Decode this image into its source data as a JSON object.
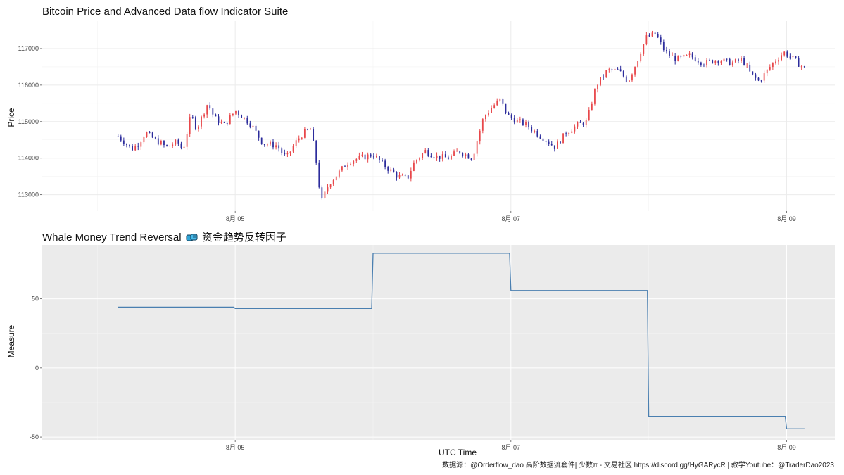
{
  "caption": "数据源：@Orderflow_dao 高阶数据流套件| 少数π - 交易社区 https://discord.gg/HyGARycR | 教学Youtube：@TraderDao2023",
  "colors": {
    "up": "#e8474a",
    "down": "#2c2c9c",
    "line": "#4a7fb0",
    "panel_bg": "#ebebeb"
  },
  "chart_data": [
    {
      "type": "candlestick",
      "title": "Bitcoin Price and Advanced Data flow Indicator Suite",
      "ylabel": "Price",
      "xlabel": "",
      "grid": true,
      "x_range_days": [
        3.6,
        9.35
      ],
      "ylim": [
        112550,
        117750
      ],
      "x_ticks": [
        {
          "day": 5,
          "label": "8月 05"
        },
        {
          "day": 7,
          "label": "8月 07"
        },
        {
          "day": 9,
          "label": "8月 09"
        }
      ],
      "y_ticks": [
        113000,
        114000,
        115000,
        116000,
        117000
      ],
      "x_start_day": 4.15,
      "x_end_day": 9.13,
      "close_anchors": [
        [
          4.15,
          114600
        ],
        [
          4.25,
          114250
        ],
        [
          4.3,
          114400
        ],
        [
          4.35,
          114700
        ],
        [
          4.42,
          114500
        ],
        [
          4.5,
          114300
        ],
        [
          4.58,
          114450
        ],
        [
          4.62,
          114200
        ],
        [
          4.68,
          115200
        ],
        [
          4.72,
          114800
        ],
        [
          4.8,
          115500
        ],
        [
          4.85,
          115100
        ],
        [
          4.92,
          114900
        ],
        [
          5.0,
          115300
        ],
        [
          5.05,
          115150
        ],
        [
          5.12,
          114900
        ],
        [
          5.2,
          114400
        ],
        [
          5.3,
          114350
        ],
        [
          5.37,
          114000
        ],
        [
          5.45,
          114500
        ],
        [
          5.5,
          114700
        ],
        [
          5.55,
          114800
        ],
        [
          5.6,
          113600
        ],
        [
          5.62,
          112750
        ],
        [
          5.68,
          113300
        ],
        [
          5.75,
          113600
        ],
        [
          5.82,
          113900
        ],
        [
          5.9,
          114000
        ],
        [
          6.0,
          114100
        ],
        [
          6.08,
          113800
        ],
        [
          6.18,
          113500
        ],
        [
          6.25,
          113450
        ],
        [
          6.3,
          113900
        ],
        [
          6.38,
          114200
        ],
        [
          6.45,
          114050
        ],
        [
          6.55,
          114000
        ],
        [
          6.62,
          114200
        ],
        [
          6.72,
          114000
        ],
        [
          6.8,
          115100
        ],
        [
          6.85,
          115350
        ],
        [
          6.92,
          115600
        ],
        [
          6.98,
          115150
        ],
        [
          7.05,
          115000
        ],
        [
          7.1,
          114950
        ],
        [
          7.18,
          114700
        ],
        [
          7.25,
          114500
        ],
        [
          7.32,
          114300
        ],
        [
          7.4,
          114700
        ],
        [
          7.48,
          114900
        ],
        [
          7.55,
          115000
        ],
        [
          7.62,
          116000
        ],
        [
          7.7,
          116400
        ],
        [
          7.78,
          116400
        ],
        [
          7.85,
          116100
        ],
        [
          7.92,
          116700
        ],
        [
          7.98,
          117300
        ],
        [
          8.05,
          117400
        ],
        [
          8.12,
          116900
        ],
        [
          8.2,
          116700
        ],
        [
          8.3,
          116800
        ],
        [
          8.4,
          116600
        ],
        [
          8.5,
          116700
        ],
        [
          8.6,
          116600
        ],
        [
          8.68,
          116700
        ],
        [
          8.74,
          116300
        ],
        [
          8.8,
          116100
        ],
        [
          8.9,
          116600
        ],
        [
          8.98,
          116900
        ],
        [
          9.05,
          116700
        ],
        [
          9.13,
          116450
        ]
      ]
    },
    {
      "type": "line",
      "title": "Whale Money Trend Reversal",
      "title_cjk": "资金趋势反转因子",
      "title_icon": "fist-bump-icon",
      "ylabel": "Measure",
      "xlabel": "UTC Time",
      "grid": true,
      "step": true,
      "x_range_days": [
        3.6,
        9.35
      ],
      "ylim": [
        -52,
        89
      ],
      "x_ticks": [
        {
          "day": 5,
          "label": "8月 05"
        },
        {
          "day": 7,
          "label": "8月 07"
        },
        {
          "day": 9,
          "label": "8月 09"
        }
      ],
      "y_ticks": [
        -50,
        0,
        50
      ],
      "series": [
        {
          "x": [
            4.15,
            4.99,
            5.0,
            5.99,
            6.0,
            6.99,
            7.0,
            7.99,
            8.0,
            8.99,
            9.0,
            9.13
          ],
          "y": [
            44,
            44,
            43,
            43,
            83,
            83,
            56,
            56,
            -35,
            -35,
            -44,
            -44
          ]
        }
      ]
    }
  ]
}
